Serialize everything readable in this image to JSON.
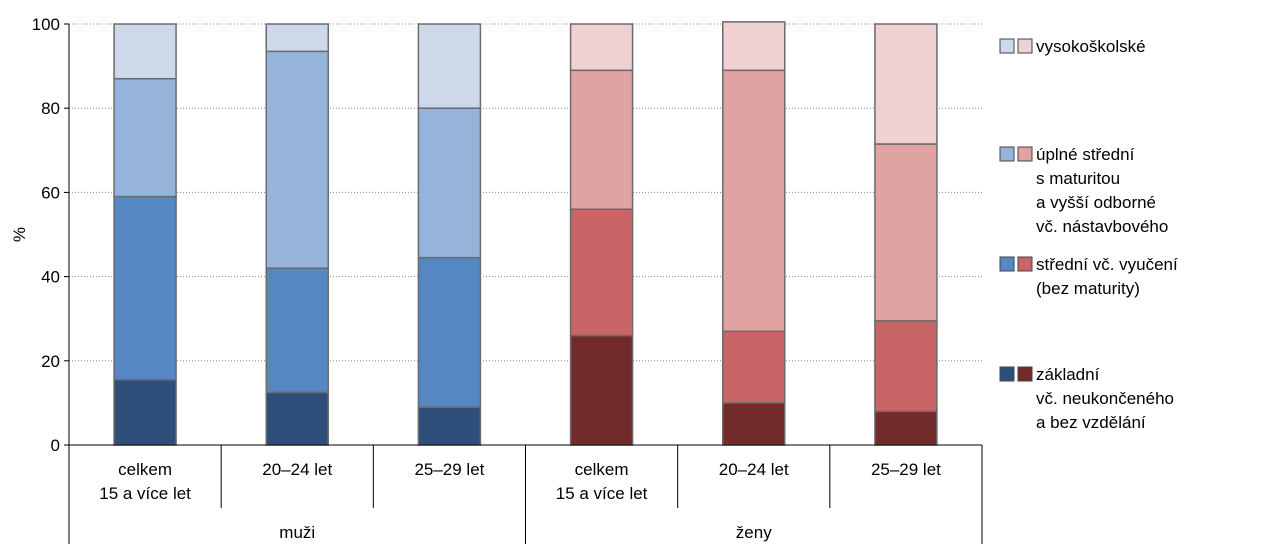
{
  "chart_data": {
    "type": "bar",
    "stacked": true,
    "ylabel": "%",
    "ylim": [
      0,
      100
    ],
    "yticks": [
      0,
      20,
      40,
      60,
      80,
      100
    ],
    "grid": "horizontal dotted",
    "legend_position": "right",
    "groups": [
      {
        "name": "muži",
        "categories": [
          {
            "line1": "celkem",
            "line2": "15 a více let"
          },
          {
            "line1": "20–24 let",
            "line2": ""
          },
          {
            "line1": "25–29 let",
            "line2": ""
          }
        ]
      },
      {
        "name": "ženy",
        "categories": [
          {
            "line1": "celkem",
            "line2": "15 a více let"
          },
          {
            "line1": "20–24 let",
            "line2": ""
          },
          {
            "line1": "25–29 let",
            "line2": ""
          }
        ]
      }
    ],
    "series": [
      {
        "key": "zakladni",
        "legend_lines": [
          "základní",
          "vč. neukončeného",
          "a bez vzdělání"
        ],
        "values": [
          15.5,
          12.5,
          9,
          26,
          10,
          8
        ]
      },
      {
        "key": "stredni_vyuceni",
        "legend_lines": [
          "střední vč. vyučení",
          "(bez maturity)"
        ],
        "values": [
          43.5,
          29.5,
          35.5,
          30,
          17,
          21.5
        ]
      },
      {
        "key": "uplne_stredni",
        "legend_lines": [
          "úplné střední",
          "s maturitou",
          "a vyšší odborné",
          "vč. nástavbového"
        ],
        "values": [
          28,
          51.5,
          35.5,
          33,
          62,
          42
        ]
      },
      {
        "key": "vysokoskolske",
        "legend_lines": [
          "vysokoškolské"
        ],
        "values": [
          13,
          6.5,
          20,
          11,
          11.5,
          28.5
        ]
      }
    ],
    "colors": {
      "men": [
        "#2f4f7b",
        "#5587c2",
        "#96b3d9",
        "#cdd9ea"
      ],
      "women": [
        "#722a2b",
        "#c96566",
        "#e1a2a2",
        "#efd1d1"
      ]
    }
  }
}
